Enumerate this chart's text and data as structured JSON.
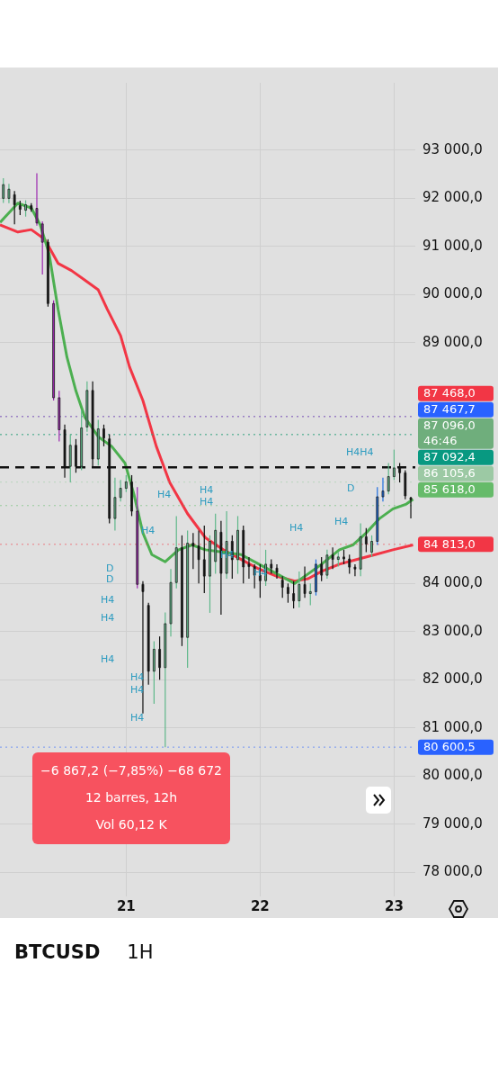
{
  "chart_data": {
    "type": "candlestick",
    "title": "BTCUSD",
    "subtitle": "1H",
    "x": [
      "--11-20T02:00",
      "--11-20T03:00",
      "--11-20T04:00",
      "--11-20T05:00",
      "--11-20T06:00",
      "--11-20T07:00",
      "--11-20T08:00",
      "--11-20T09:00",
      "--11-20T10:00",
      "--11-20T11:00",
      "--11-20T12:00",
      "--11-20T13:00",
      "--11-20T14:00",
      "--11-20T15:00",
      "--11-20T16:00",
      "--11-20T17:00",
      "--11-20T18:00",
      "--11-20T19:00",
      "--11-20T20:00",
      "--11-20T21:00",
      "--11-20T22:00",
      "--11-20T23:00",
      "--11-21T00:00",
      "--11-21T01:00",
      "--11-21T02:00",
      "--11-21T03:00",
      "--11-21T04:00",
      "--11-21T05:00",
      "--11-21T06:00",
      "--11-21T07:00",
      "--11-21T08:00",
      "--11-21T09:00",
      "--11-21T10:00",
      "--11-21T11:00",
      "--11-21T12:00",
      "--11-21T13:00",
      "--11-21T14:00",
      "--11-21T15:00",
      "--11-21T16:00",
      "--11-21T17:00",
      "--11-21T18:00",
      "--11-21T19:00",
      "--11-21T20:00",
      "--11-21T21:00",
      "--11-21T22:00",
      "--11-21T23:00",
      "--11-22T00:00",
      "--11-22T01:00",
      "--11-22T02:00",
      "--11-22T03:00",
      "--11-22T04:00",
      "--11-22T05:00",
      "--11-22T06:00",
      "--11-22T07:00",
      "--11-22T08:00",
      "--11-22T09:00",
      "--11-22T10:00",
      "--11-22T11:00",
      "--11-22T12:00",
      "--11-22T13:00",
      "--11-22T14:00",
      "--11-22T15:00",
      "--11-22T16:00",
      "--11-22T17:00",
      "--11-22T18:00",
      "--11-22T19:00",
      "--11-22T20:00",
      "--11-22T21:00",
      "--11-22T22:00",
      "--11-22T23:00",
      "--11-23T00:00",
      "--11-23T01:00",
      "--11-23T02:00",
      "--11-23T03:00"
    ],
    "ohlc": [
      [
        92000,
        92420,
        91905,
        92285
      ],
      [
        92000,
        92300,
        91900,
        92190
      ],
      [
        92076,
        92150,
        91460,
        91867
      ],
      [
        91848,
        91950,
        91650,
        91772
      ],
      [
        91753,
        91960,
        91620,
        91867
      ],
      [
        91848,
        91900,
        91720,
        91772
      ],
      [
        91791,
        92520,
        91430,
        91487
      ],
      [
        91468,
        91520,
        90420,
        91088
      ],
      [
        91088,
        91150,
        89750,
        89815
      ],
      [
        89815,
        89880,
        87800,
        87858
      ],
      [
        87858,
        88000,
        86950,
        87193
      ],
      [
        87193,
        87300,
        86200,
        86433
      ],
      [
        86433,
        87100,
        86100,
        86870
      ],
      [
        86870,
        87000,
        86300,
        86433
      ],
      [
        86433,
        87600,
        86350,
        87231
      ],
      [
        87250,
        88200,
        87150,
        88010
      ],
      [
        88010,
        88200,
        86400,
        86585
      ],
      [
        86585,
        87400,
        86450,
        87212
      ],
      [
        87212,
        87300,
        86850,
        87022
      ],
      [
        87003,
        87100,
        85250,
        85350
      ],
      [
        85350,
        86200,
        85100,
        85787
      ],
      [
        85787,
        86150,
        85700,
        85977
      ],
      [
        85977,
        86250,
        85900,
        86110
      ],
      [
        86110,
        86250,
        85400,
        85502
      ],
      [
        85502,
        86000,
        83900,
        83982
      ],
      [
        83982,
        84050,
        81300,
        83830
      ],
      [
        83545,
        83600,
        81900,
        82177
      ],
      [
        82177,
        82800,
        81500,
        82633
      ],
      [
        82633,
        82900,
        82000,
        82253
      ],
      [
        82253,
        83400,
        80600,
        83165
      ],
      [
        83165,
        84300,
        82900,
        84020
      ],
      [
        84020,
        85400,
        83900,
        84742
      ],
      [
        84742,
        85000,
        82700,
        82880
      ],
      [
        82880,
        85100,
        82250,
        84837
      ],
      [
        84837,
        85050,
        84300,
        84780
      ],
      [
        84780,
        85100,
        84000,
        84495
      ],
      [
        84495,
        85200,
        83800,
        84153
      ],
      [
        84153,
        85000,
        83390,
        84875
      ],
      [
        84457,
        85450,
        84200,
        85103
      ],
      [
        85065,
        85300,
        83350,
        84210
      ],
      [
        84210,
        85500,
        84100,
        84875
      ],
      [
        84875,
        85000,
        84100,
        84495
      ],
      [
        84495,
        85400,
        84200,
        85103
      ],
      [
        85103,
        85200,
        84000,
        84343
      ],
      [
        84400,
        84550,
        84100,
        84350
      ],
      [
        84350,
        84400,
        83900,
        84172
      ],
      [
        84172,
        84400,
        83700,
        84058
      ],
      [
        84058,
        84700,
        83950,
        84400
      ],
      [
        84400,
        84500,
        84200,
        84320
      ],
      [
        84320,
        84400,
        84100,
        84230
      ],
      [
        84070,
        84150,
        83700,
        83920
      ],
      [
        83920,
        84000,
        83600,
        83790
      ],
      [
        83790,
        84050,
        83480,
        83640
      ],
      [
        83640,
        84250,
        83500,
        83980
      ],
      [
        83980,
        84350,
        83700,
        83790
      ],
      [
        83790,
        84000,
        83550,
        83830
      ],
      [
        83830,
        84500,
        83750,
        84400
      ],
      [
        84400,
        84550,
        84050,
        84172
      ],
      [
        84172,
        84700,
        84100,
        84590
      ],
      [
        84590,
        84750,
        84300,
        84500
      ],
      [
        84500,
        84650,
        84350,
        84550
      ],
      [
        84550,
        84700,
        84400,
        84510
      ],
      [
        84510,
        84600,
        84200,
        84340
      ],
      [
        84340,
        84400,
        84150,
        84300
      ],
      [
        84300,
        85250,
        84150,
        84970
      ],
      [
        84970,
        85150,
        84650,
        84820
      ],
      [
        84650,
        85000,
        84550,
        84875
      ],
      [
        84875,
        86000,
        84800,
        85800
      ],
      [
        85800,
        86200,
        85700,
        85920
      ],
      [
        85920,
        86500,
        85850,
        86220
      ],
      [
        86220,
        86780,
        86150,
        86400
      ],
      [
        86400,
        86500,
        86100,
        86300
      ],
      [
        86300,
        86350,
        85750,
        85820
      ],
      [
        85780,
        85800,
        85350,
        85740
      ]
    ],
    "colors": [
      "#5fb88a",
      "#5fb88a",
      "#111111",
      "#111111",
      "#5fb88a",
      "#111111",
      "#9c27b0",
      "#9c27b0",
      "#111111",
      "#9c27b0",
      "#9c27b0",
      "#111111",
      "#5fb88a",
      "#111111",
      "#5fb88a",
      "#5fb88a",
      "#111111",
      "#5fb88a",
      "#111111",
      "#111111",
      "#5fb88a",
      "#5fb88a",
      "#5fb88a",
      "#111111",
      "#9c27b0",
      "#111111",
      "#111111",
      "#5fb88a",
      "#111111",
      "#5fb88a",
      "#5fb88a",
      "#5fb88a",
      "#111111",
      "#5fb88a",
      "#111111",
      "#111111",
      "#111111",
      "#5fb88a",
      "#5fb88a",
      "#111111",
      "#5fb88a",
      "#111111",
      "#5fb88a",
      "#111111",
      "#111111",
      "#111111",
      "#111111",
      "#5fb88a",
      "#111111",
      "#111111",
      "#111111",
      "#111111",
      "#111111",
      "#5fb88a",
      "#111111",
      "#5fb88a",
      "#1e6fe0",
      "#111111",
      "#5fb88a",
      "#111111",
      "#5fb88a",
      "#111111",
      "#111111",
      "#111111",
      "#5fb88a",
      "#111111",
      "#5fb88a",
      "#1e6fe0",
      "#1e6fe0",
      "#5fb88a",
      "#5fb88a",
      "#111111",
      "#111111",
      "#111111"
    ],
    "series": [
      {
        "type": "line",
        "color": "#4caf50",
        "x": [
          "--11-20T01:24",
          "--11-20T04:36",
          "--11-20T07:00",
          "--11-20T08:36",
          "--11-20T10:12",
          "--11-20T11:48",
          "--11-20T13:24",
          "--11-20T15:00",
          "--11-20T16:36",
          "--11-20T19:00",
          "--11-20T21:24",
          "--11-20T23:48",
          "--11-21T01:24",
          "--11-21T03:00",
          "--11-21T04:36",
          "--11-21T07:00",
          "--11-21T09:24",
          "--11-21T11:48",
          "--11-21T14:12",
          "--11-21T17:24",
          "--11-21T20:36",
          "--11-21T23:48",
          "--11-22T03:00",
          "--11-22T06:12",
          "--11-22T08:36",
          "--11-22T11:00",
          "--11-22T14:12",
          "--11-22T16:36",
          "--11-22T19:00",
          "--11-22T21:24",
          "--11-22T23:48",
          "--11-23T02:12",
          "--11-23T03:24"
        ],
        "values": [
          91500,
          91900,
          91800,
          91450,
          90850,
          89700,
          88700,
          88000,
          87450,
          87050,
          86850,
          86500,
          85850,
          85050,
          84600,
          84450,
          84700,
          84800,
          84700,
          84650,
          84600,
          84400,
          84200,
          84000,
          84200,
          84400,
          84700,
          84800,
          85050,
          85350,
          85550,
          85650,
          85750
        ]
      },
      {
        "type": "line",
        "color": "#f23645",
        "x": [
          "--11-20T01:24",
          "--11-20T04:36",
          "--11-20T07:00",
          "--11-20T09:24",
          "--11-20T11:48",
          "--11-20T14:12",
          "--11-20T16:36",
          "--11-20T19:00",
          "--11-20T20:36",
          "--11-20T23:00",
          "--11-21T00:36",
          "--11-21T03:00",
          "--11-21T05:24",
          "--11-21T07:48",
          "--11-21T11:00",
          "--11-21T14:12",
          "--11-21T17:24",
          "--11-21T20:36",
          "--11-21T23:48",
          "--11-22T03:00",
          "--11-22T06:12",
          "--11-22T08:36",
          "--11-22T11:00",
          "--11-22T14:12",
          "--11-22T17:24",
          "--11-22T20:36",
          "--11-22T23:48",
          "--11-23T03:24"
        ],
        "values": [
          91450,
          91300,
          91350,
          91150,
          90650,
          90500,
          90300,
          90100,
          89700,
          89150,
          88500,
          87800,
          86850,
          86100,
          85450,
          84950,
          84700,
          84500,
          84300,
          84150,
          84050,
          84100,
          84250,
          84400,
          84500,
          84600,
          84700,
          84800
        ]
      }
    ],
    "xlim": [
      "--11-20T01:24",
      "--11-23T03:48"
    ],
    "xticks": [
      {
        "value": "--11-21",
        "label": "21"
      },
      {
        "value": "--11-22",
        "label": "22"
      },
      {
        "value": "--11-23",
        "label": "23"
      }
    ],
    "ylim": [
      77500,
      94400
    ],
    "yticks": [
      {
        "value": 78000,
        "label": "78 000,0"
      },
      {
        "value": 79000,
        "label": "79 000,0"
      },
      {
        "value": 80000,
        "label": "80 000,0"
      },
      {
        "value": 81000,
        "label": "81 000,0"
      },
      {
        "value": 82000,
        "label": "82 000,0"
      },
      {
        "value": 83000,
        "label": "83 000,0"
      },
      {
        "value": 84000,
        "label": "84 000,0"
      },
      {
        "value": 89000,
        "label": "89 000,0"
      },
      {
        "value": 90000,
        "label": "90 000,0"
      },
      {
        "value": 91000,
        "label": "91 000,0"
      },
      {
        "value": 92000,
        "label": "92 000,0"
      },
      {
        "value": 93000,
        "label": "93 000,0"
      }
    ],
    "grid": true,
    "legend": false,
    "marker": "none",
    "line_style": "solid",
    "ref_lines": [
      {
        "axis": "y",
        "value": 87468,
        "label": "87 468,0",
        "color": "#f23645",
        "line_style": "dotted"
      },
      {
        "axis": "y",
        "value": 87467.7,
        "label": "87 467,7",
        "color": "#2962ff",
        "line_style": "dotted"
      },
      {
        "axis": "y",
        "value": 87096,
        "label": "87 096,0\n46:46",
        "color": "#6fae7c",
        "line_style": "dotted"
      },
      {
        "axis": "y",
        "value": 87092.4,
        "label": "87 092,4",
        "color": "#089981",
        "line_style": "dotted"
      },
      {
        "axis": "y",
        "value": 86105.6,
        "label": "86 105,6",
        "color": "#9cc9a4",
        "line_style": "dotted"
      },
      {
        "axis": "y",
        "value": 85618,
        "label": "85 618,0",
        "color": "#66bb6a",
        "line_style": "dotted"
      },
      {
        "axis": "y",
        "value": 84813,
        "label": "84 813,0",
        "color": "#f23645",
        "line_style": "dotted"
      },
      {
        "axis": "y",
        "value": 86414,
        "label": null,
        "color": "#111111",
        "line_style": "dashed"
      },
      {
        "axis": "y",
        "value": 80600.5,
        "label": "80 600,5",
        "color": "#2962ff",
        "line_style": "dotted"
      }
    ],
    "annotations": [
      "−6 867,2 (−7,85%) −68 672",
      "12 barres, 12h",
      "Vol 60,12 K",
      "H4",
      "H4",
      "H4",
      "H4",
      "H4",
      "H4",
      "H4",
      "H4",
      "D",
      "H4H4",
      "D",
      "D",
      "H4",
      "H4",
      "H4",
      "H4",
      "H4",
      "H4"
    ]
  }
}
